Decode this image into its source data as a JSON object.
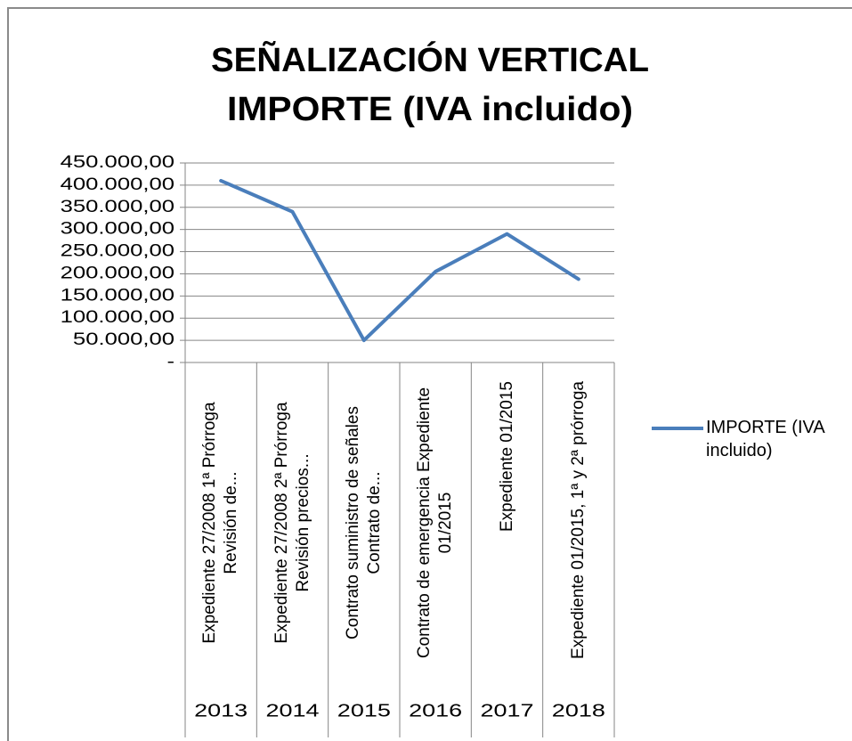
{
  "chart_data": {
    "type": "line",
    "title": [
      "SEÑALIZACIÓN VERTICAL",
      "IMPORTE (IVA incluido)"
    ],
    "categories": [
      "Expediente 27/2008 1ª Prórroga  Revisión de...",
      "Expediente 27/2008 2ª Prórroga Revisión precios...",
      "Contrato suministro de señales Contrato de...",
      "Contrato de emergencia Expediente 01/2015",
      "Expediente 01/2015",
      "Expediente 01/2015, 1ª y 2ª prórroga"
    ],
    "groups": [
      "2013",
      "2014",
      "2015",
      "2016",
      "2017",
      "2018"
    ],
    "series": [
      {
        "name": "IMPORTE (IVA incluido)",
        "color": "#4a7ebb",
        "values": [
          410000,
          340000,
          50000,
          205000,
          290000,
          188000
        ]
      }
    ],
    "ylim": [
      0,
      450000
    ],
    "yticks": [
      {
        "value": 0,
        "label": "-"
      },
      {
        "value": 50000,
        "label": "50.000,00"
      },
      {
        "value": 100000,
        "label": "100.000,00"
      },
      {
        "value": 150000,
        "label": "150.000,00"
      },
      {
        "value": 200000,
        "label": "200.000,00"
      },
      {
        "value": 250000,
        "label": "250.000,00"
      },
      {
        "value": 300000,
        "label": "300.000,00"
      },
      {
        "value": 350000,
        "label": "350.000,00"
      },
      {
        "value": 400000,
        "label": "400.000,00"
      },
      {
        "value": 450000,
        "label": "450.000,00"
      }
    ],
    "grid": true,
    "legend": "right"
  }
}
